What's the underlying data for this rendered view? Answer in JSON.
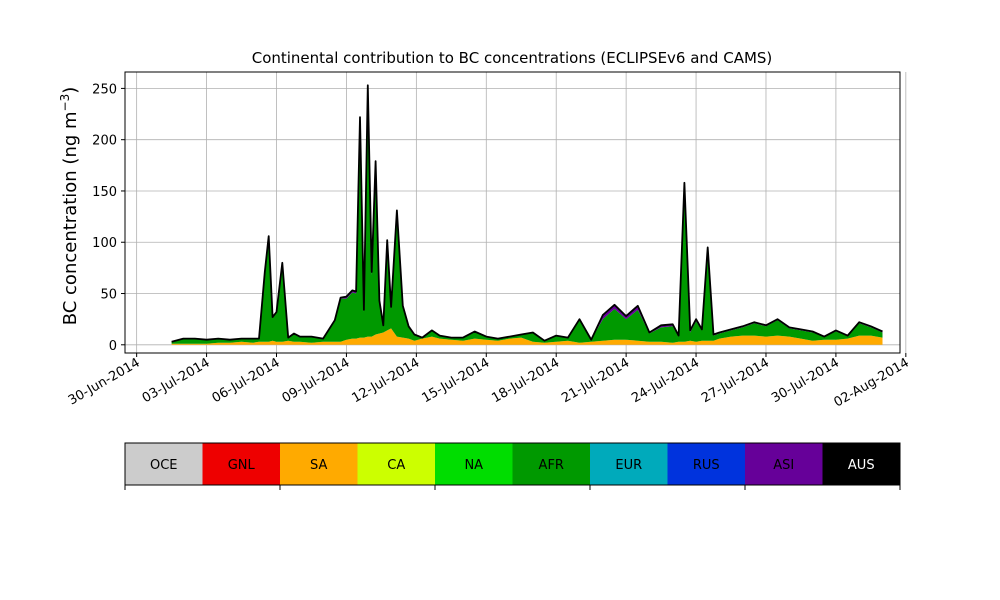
{
  "chart_data": {
    "type": "area",
    "title": "Continental contribution to BC concentrations (ECLIPSEv6 and CAMS)",
    "ylabel": "BC concentration (ng m",
    "ylabel_superscript": "−3",
    "ylabel_close": ")",
    "xlabel": "",
    "grid": true,
    "ylim": [
      -8,
      266
    ],
    "xlim": [
      "2014-06-29T12:00",
      "2014-08-01T18:00"
    ],
    "y_ticks": [
      0,
      50,
      100,
      150,
      200,
      250
    ],
    "x_ticks": [
      "30-Jun-2014",
      "03-Jul-2014",
      "06-Jul-2014",
      "09-Jul-2014",
      "12-Jul-2014",
      "15-Jul-2014",
      "18-Jul-2014",
      "21-Jul-2014",
      "24-Jul-2014",
      "27-Jul-2014",
      "30-Jul-2014",
      "02-Aug-2014"
    ],
    "x": [
      "2014-07-01T12:00",
      "2014-07-02T00:00",
      "2014-07-02T12:00",
      "2014-07-03T00:00",
      "2014-07-03T12:00",
      "2014-07-04T00:00",
      "2014-07-04T12:00",
      "2014-07-05T00:00",
      "2014-07-05T06:00",
      "2014-07-05T12:00",
      "2014-07-05T16:00",
      "2014-07-05T20:00",
      "2014-07-06T00:00",
      "2014-07-06T06:00",
      "2014-07-06T12:00",
      "2014-07-06T18:00",
      "2014-07-07T00:00",
      "2014-07-07T12:00",
      "2014-07-08T00:00",
      "2014-07-08T12:00",
      "2014-07-08T18:00",
      "2014-07-09T00:00",
      "2014-07-09T06:00",
      "2014-07-09T10:00",
      "2014-07-09T14:00",
      "2014-07-09T18:00",
      "2014-07-09T22:00",
      "2014-07-10T02:00",
      "2014-07-10T06:00",
      "2014-07-10T10:00",
      "2014-07-10T14:00",
      "2014-07-10T18:00",
      "2014-07-10T22:00",
      "2014-07-11T04:00",
      "2014-07-11T10:00",
      "2014-07-11T16:00",
      "2014-07-11T22:00",
      "2014-07-12T06:00",
      "2014-07-12T16:00",
      "2014-07-13T00:00",
      "2014-07-13T12:00",
      "2014-07-14T00:00",
      "2014-07-14T12:00",
      "2014-07-15T00:00",
      "2014-07-15T12:00",
      "2014-07-16T00:00",
      "2014-07-16T12:00",
      "2014-07-17T00:00",
      "2014-07-17T12:00",
      "2014-07-18T00:00",
      "2014-07-18T12:00",
      "2014-07-19T00:00",
      "2014-07-19T12:00",
      "2014-07-20T00:00",
      "2014-07-20T12:00",
      "2014-07-21T00:00",
      "2014-07-21T12:00",
      "2014-07-22T00:00",
      "2014-07-22T12:00",
      "2014-07-23T00:00",
      "2014-07-23T06:00",
      "2014-07-23T12:00",
      "2014-07-23T18:00",
      "2014-07-24T00:00",
      "2014-07-24T06:00",
      "2014-07-24T12:00",
      "2014-07-24T18:00",
      "2014-07-25T00:00",
      "2014-07-25T12:00",
      "2014-07-26T00:00",
      "2014-07-26T12:00",
      "2014-07-27T00:00",
      "2014-07-27T12:00",
      "2014-07-28T00:00",
      "2014-07-28T12:00",
      "2014-07-29T00:00",
      "2014-07-29T12:00",
      "2014-07-30T00:00",
      "2014-07-30T12:00",
      "2014-07-31T00:00",
      "2014-07-31T12:00",
      "2014-08-01T00:00"
    ],
    "series": [
      {
        "name": "SA",
        "color": "#ffaa00",
        "values": [
          1,
          1,
          1,
          1,
          2,
          2,
          3,
          2,
          3,
          3,
          3,
          4,
          3,
          3,
          4,
          3,
          3,
          2,
          3,
          3,
          3,
          5,
          6,
          6,
          7,
          7,
          8,
          8,
          10,
          11,
          12,
          14,
          16,
          8,
          7,
          6,
          4,
          6,
          8,
          6,
          5,
          4,
          6,
          5,
          4,
          6,
          7,
          3,
          2,
          3,
          4,
          2,
          3,
          4,
          5,
          5,
          4,
          3,
          3,
          2,
          3,
          3,
          4,
          3,
          4,
          4,
          4,
          6,
          8,
          9,
          9,
          8,
          9,
          8,
          6,
          4,
          5,
          5,
          6,
          9,
          9,
          7
        ]
      },
      {
        "name": "AFR",
        "color": "#009900",
        "values": [
          2,
          5,
          5,
          4,
          4,
          3,
          3,
          4,
          3,
          65,
          100,
          22,
          28,
          76,
          3,
          8,
          5,
          6,
          3,
          20,
          42,
          40,
          45,
          44,
          210,
          25,
          240,
          60,
          165,
          30,
          6,
          85,
          20,
          120,
          30,
          12,
          6,
          1,
          6,
          3,
          2,
          3,
          7,
          3,
          2,
          2,
          3,
          9,
          2,
          6,
          3,
          22,
          2,
          21,
          30,
          20,
          30,
          8,
          14,
          16,
          5,
          150,
          8,
          20,
          10,
          86,
          5,
          5,
          6,
          8,
          12,
          10,
          15,
          8,
          8,
          8,
          3,
          8,
          3,
          12,
          8,
          5
        ]
      },
      {
        "name": "ASI",
        "color": "#660099",
        "values": [
          0,
          0,
          0,
          0,
          0,
          0,
          0,
          0,
          0,
          2,
          2,
          1,
          1,
          1,
          0,
          0,
          0,
          0,
          0,
          1,
          1,
          2,
          2,
          2,
          4,
          2,
          4,
          3,
          3,
          2,
          1,
          2,
          1,
          2,
          1,
          0,
          0,
          0,
          0,
          0,
          0,
          0,
          0,
          0,
          0,
          0,
          0,
          0,
          0,
          0,
          0,
          1,
          0,
          4,
          4,
          3,
          4,
          1,
          2,
          2,
          1,
          4,
          2,
          2,
          1,
          4,
          1,
          1,
          1,
          1,
          1,
          1,
          1,
          1,
          1,
          1,
          0,
          1,
          0,
          1,
          1,
          1
        ]
      },
      {
        "name": "AUS",
        "color": "#000000",
        "values": [
          0,
          0,
          0,
          0,
          0,
          0,
          0,
          0,
          0,
          1,
          1,
          0,
          0,
          0,
          0,
          0,
          0,
          0,
          0,
          0,
          0,
          0,
          0,
          0,
          1,
          0,
          1,
          0,
          1,
          0,
          0,
          1,
          0,
          1,
          0,
          0,
          0,
          0,
          0,
          0,
          0,
          0,
          0,
          0,
          0,
          0,
          0,
          0,
          0,
          0,
          0,
          0,
          0,
          0,
          0,
          0,
          0,
          0,
          0,
          0,
          0,
          1,
          0,
          0,
          0,
          1,
          0,
          0,
          0,
          0,
          0,
          0,
          0,
          0,
          0,
          0,
          0,
          0,
          0,
          0,
          0,
          0
        ]
      }
    ]
  },
  "legend": {
    "entries": [
      {
        "label": "OCE",
        "color": "#cccccc",
        "text_color": "#000000"
      },
      {
        "label": "GNL",
        "color": "#ee0000",
        "text_color": "#000000"
      },
      {
        "label": "SA",
        "color": "#ffaa00",
        "text_color": "#000000"
      },
      {
        "label": "CA",
        "color": "#ccff00",
        "text_color": "#000000"
      },
      {
        "label": "NA",
        "color": "#00dd00",
        "text_color": "#000000"
      },
      {
        "label": "AFR",
        "color": "#009900",
        "text_color": "#000000"
      },
      {
        "label": "EUR",
        "color": "#00aabb",
        "text_color": "#000000"
      },
      {
        "label": "RUS",
        "color": "#0033dd",
        "text_color": "#000000"
      },
      {
        "label": "ASI",
        "color": "#660099",
        "text_color": "#000000"
      },
      {
        "label": "AUS",
        "color": "#000000",
        "text_color": "#ffffff"
      }
    ]
  }
}
